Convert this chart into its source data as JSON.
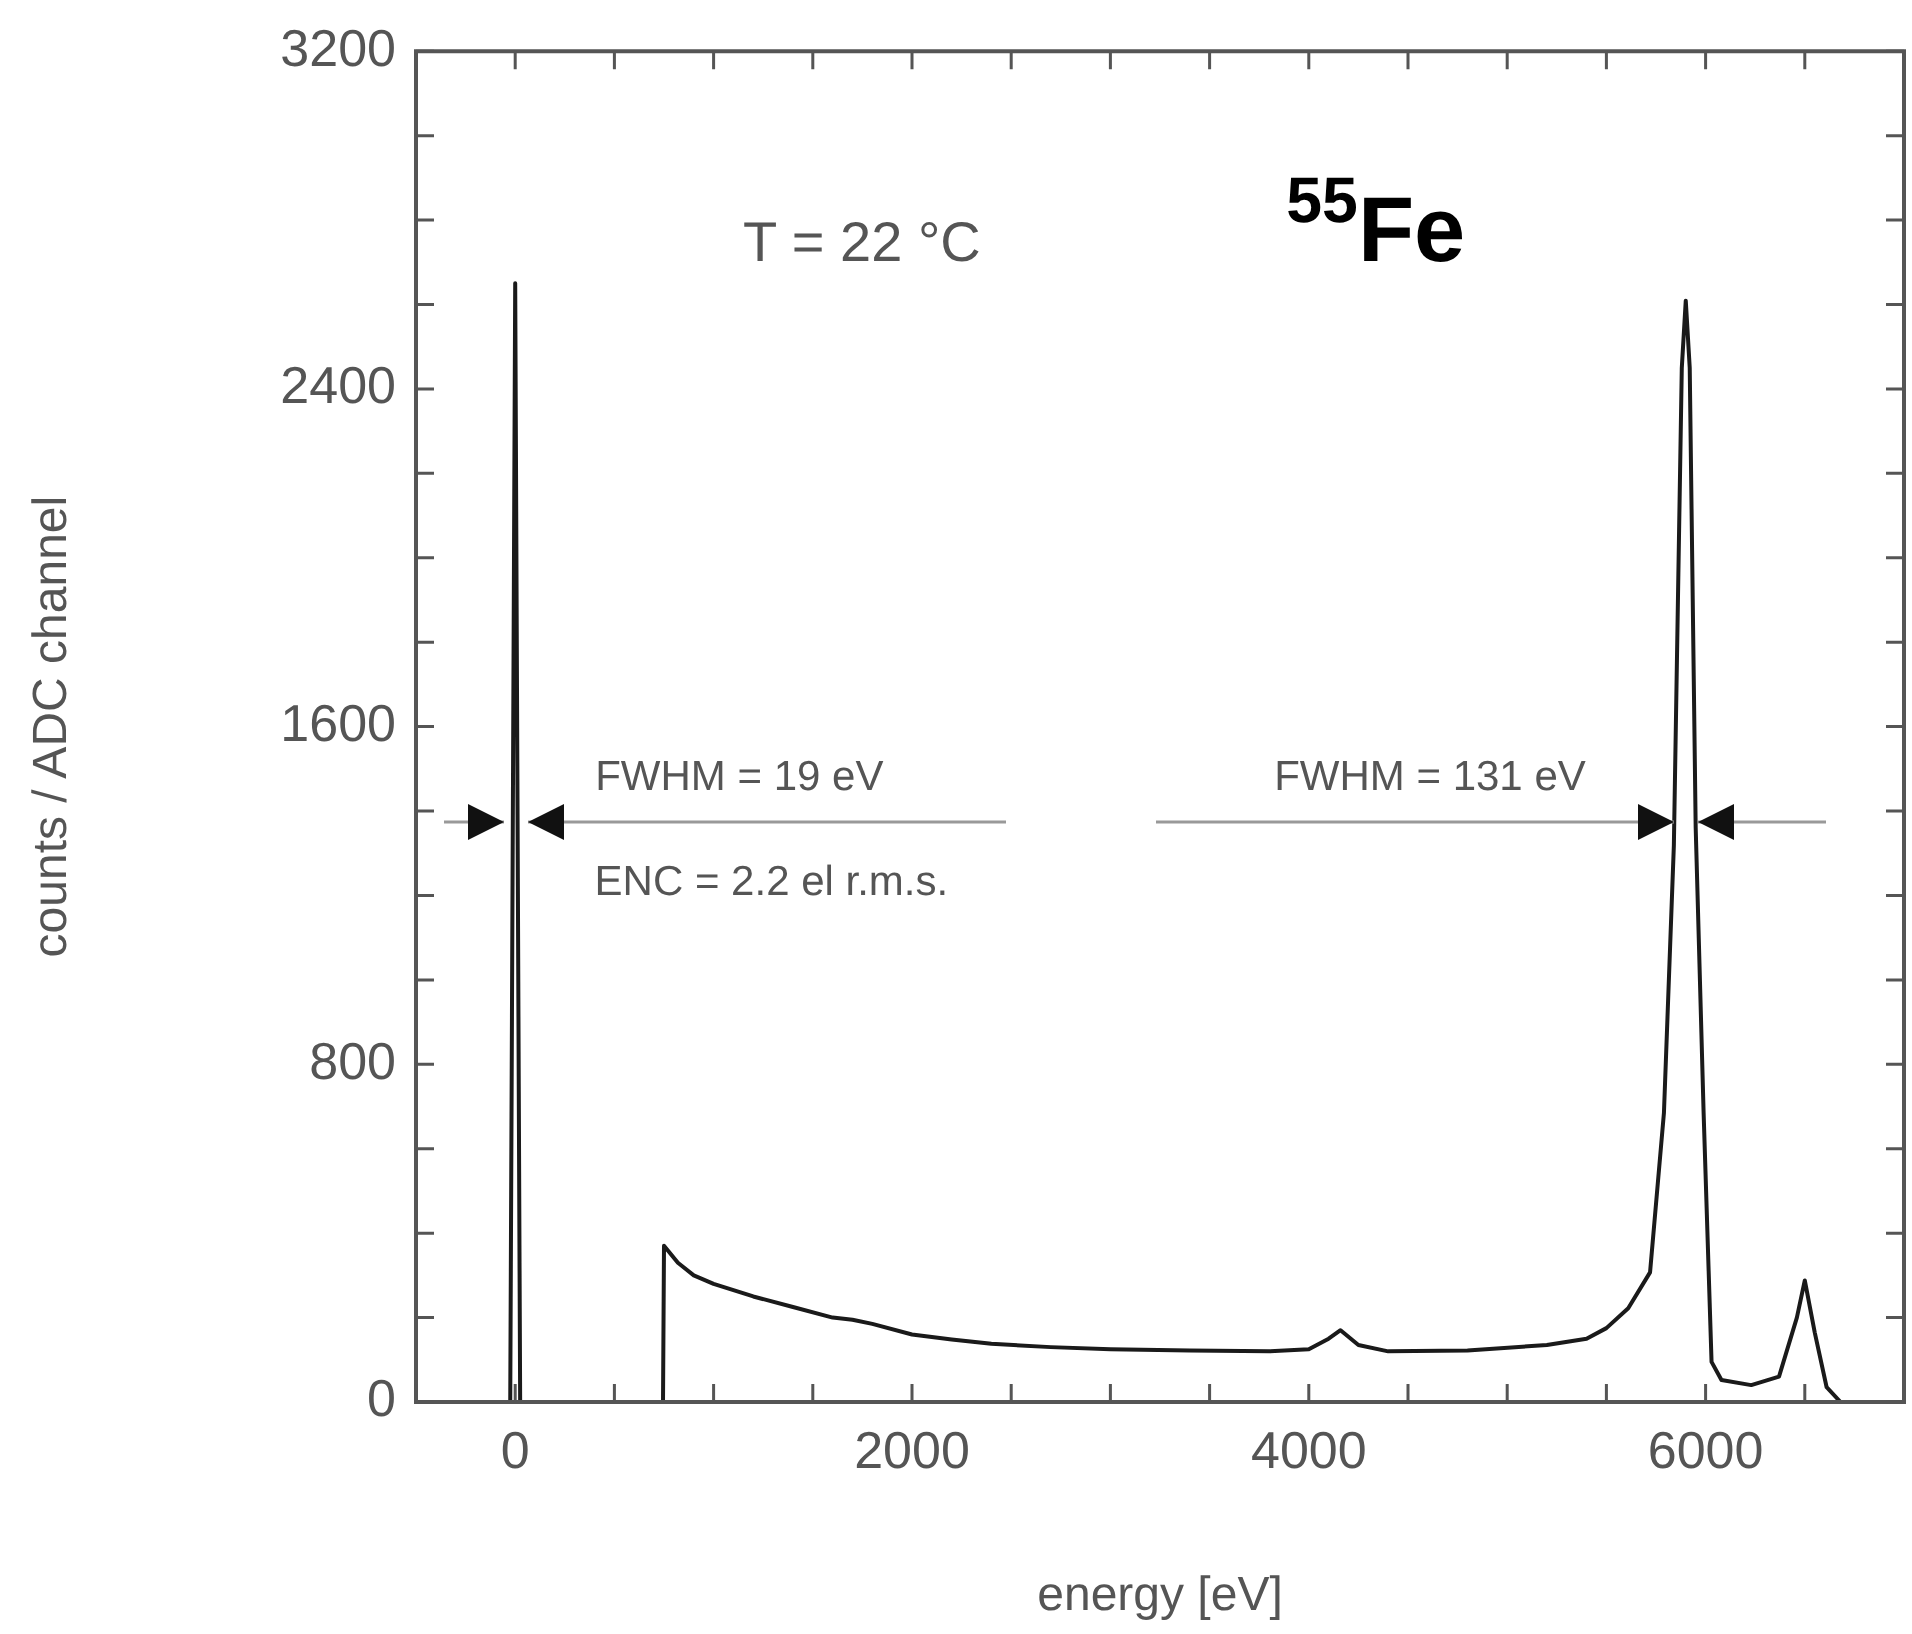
{
  "chart_data": {
    "type": "line",
    "xlabel": "energy [eV]",
    "ylabel": "counts / ADC channel",
    "x": [
      -500,
      -25,
      0,
      25,
      745,
      750,
      820,
      900,
      1000,
      1200,
      1400,
      1600,
      1700,
      1800,
      2000,
      2200,
      2400,
      2700,
      3000,
      3400,
      3800,
      4000,
      4100,
      4160,
      4250,
      4400,
      4800,
      5200,
      5400,
      5500,
      5610,
      5720,
      5790,
      5840,
      5880,
      5900,
      5920,
      5950,
      5990,
      6030,
      6080,
      6230,
      6370,
      6460,
      6500,
      6550,
      6610,
      6680,
      7000
    ],
    "series": [
      {
        "color": "#1a1a1a",
        "values": [
          0,
          0,
          2650,
          0,
          0,
          370,
          330,
          300,
          280,
          250,
          225,
          200,
          195,
          185,
          160,
          148,
          138,
          130,
          125,
          122,
          120,
          125,
          150,
          170,
          135,
          120,
          122,
          135,
          150,
          175,
          222,
          307,
          685,
          1318,
          2450,
          2609,
          2450,
          1361,
          685,
          95,
          52,
          40,
          60,
          200,
          288,
          165,
          35,
          0,
          0
        ]
      }
    ],
    "xlim": [
      -500,
      7000
    ],
    "xticks": [
      {
        "value": -500,
        "label": null
      },
      0,
      {
        "value": 500,
        "label": null
      },
      {
        "value": 1000,
        "label": null
      },
      {
        "value": 1500,
        "label": null
      },
      2000,
      {
        "value": 2500,
        "label": null
      },
      {
        "value": 3000,
        "label": null
      },
      {
        "value": 3500,
        "label": null
      },
      4000,
      {
        "value": 4500,
        "label": null
      },
      {
        "value": 5000,
        "label": null
      },
      {
        "value": 5500,
        "label": null
      },
      6000,
      {
        "value": 6500,
        "label": null
      }
    ],
    "ylim": [
      0,
      3200
    ],
    "yticks": [
      0,
      {
        "value": 200,
        "label": null
      },
      {
        "value": 400,
        "label": null
      },
      {
        "value": 600,
        "label": null
      },
      800,
      {
        "value": 1000,
        "label": null
      },
      {
        "value": 1200,
        "label": null
      },
      {
        "value": 1400,
        "label": null
      },
      1600,
      {
        "value": 1800,
        "label": null
      },
      {
        "value": 2000,
        "label": null
      },
      {
        "value": 2200,
        "label": null
      },
      2400,
      {
        "value": 2600,
        "label": null
      },
      {
        "value": 2800,
        "label": null
      },
      {
        "value": 3000,
        "label": null
      },
      3200
    ],
    "grid": false,
    "legend": false,
    "marker": "none",
    "line_style": "solid",
    "annotations": [
      {
        "text": "FWHM = 19 eV",
        "x": 0,
        "y": 1375
      },
      {
        "text": "FWHM = 131 eV",
        "x": 5900,
        "y": 1375
      },
      "T = 22 °C",
      "$^{55}$Fe",
      "ENC = 2.2 el r.m.s."
    ]
  }
}
